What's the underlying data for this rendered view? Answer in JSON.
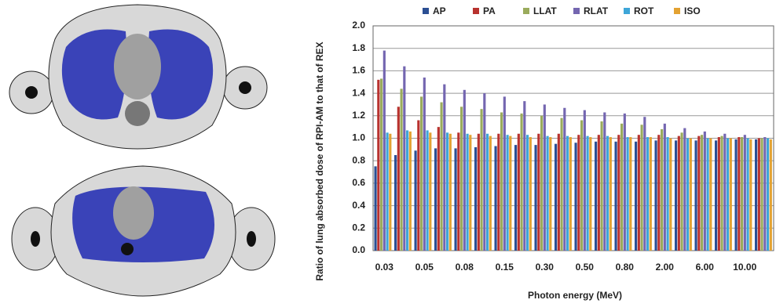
{
  "chart_data": {
    "type": "bar",
    "x_label": "Photon energy (MeV)",
    "y_label": "Ratio of lung absorbed dose of RPI-AM to that of REX",
    "categories": [
      "0.03",
      null,
      "0.05",
      null,
      "0.08",
      null,
      "0.15",
      null,
      "0.30",
      null,
      "0.50",
      null,
      "0.80",
      null,
      "2.00",
      null,
      "6.00",
      null,
      "10.00",
      null
    ],
    "series": [
      {
        "name": "AP",
        "color": "#2b4f93",
        "values": [
          0.75,
          0.85,
          0.89,
          0.91,
          0.91,
          0.92,
          0.93,
          0.94,
          0.94,
          0.95,
          0.96,
          0.97,
          0.97,
          0.97,
          0.98,
          0.98,
          0.98,
          0.98,
          0.99,
          0.99
        ]
      },
      {
        "name": "PA",
        "color": "#b8322e",
        "values": [
          1.52,
          1.28,
          1.16,
          1.1,
          1.05,
          1.04,
          1.04,
          1.04,
          1.04,
          1.04,
          1.03,
          1.03,
          1.03,
          1.03,
          1.03,
          1.02,
          1.02,
          1.01,
          1.01,
          1.0
        ]
      },
      {
        "name": "LLAT",
        "color": "#9aab5c",
        "values": [
          1.53,
          1.44,
          1.37,
          1.32,
          1.28,
          1.26,
          1.23,
          1.22,
          1.2,
          1.18,
          1.16,
          1.15,
          1.13,
          1.12,
          1.08,
          1.05,
          1.03,
          1.02,
          1.01,
          1.0
        ]
      },
      {
        "name": "RLAT",
        "color": "#7466b0",
        "values": [
          1.78,
          1.64,
          1.54,
          1.48,
          1.43,
          1.4,
          1.37,
          1.33,
          1.3,
          1.27,
          1.25,
          1.23,
          1.22,
          1.19,
          1.13,
          1.09,
          1.06,
          1.04,
          1.03,
          1.01
        ]
      },
      {
        "name": "ROT",
        "color": "#3ea6d8",
        "values": [
          1.05,
          1.07,
          1.07,
          1.05,
          1.04,
          1.04,
          1.03,
          1.03,
          1.02,
          1.02,
          1.02,
          1.02,
          1.01,
          1.01,
          1.01,
          1.0,
          1.0,
          1.0,
          1.0,
          1.0
        ]
      },
      {
        "name": "ISO",
        "color": "#e3a232",
        "values": [
          1.04,
          1.06,
          1.05,
          1.04,
          1.03,
          1.02,
          1.02,
          1.01,
          1.01,
          1.01,
          1.01,
          1.01,
          1.01,
          1.01,
          1.0,
          1.0,
          1.0,
          1.0,
          0.99,
          0.99
        ]
      }
    ],
    "ylim": [
      0,
      2
    ],
    "yticks": [
      {
        "value": 0,
        "label": "0.0"
      },
      0.2,
      0.4,
      0.6,
      0.8,
      {
        "value": 1,
        "label": "1.0"
      },
      1.2,
      1.4,
      1.6,
      1.8,
      {
        "value": 2,
        "label": "2.0"
      }
    ],
    "grid": true,
    "legend": "top"
  }
}
